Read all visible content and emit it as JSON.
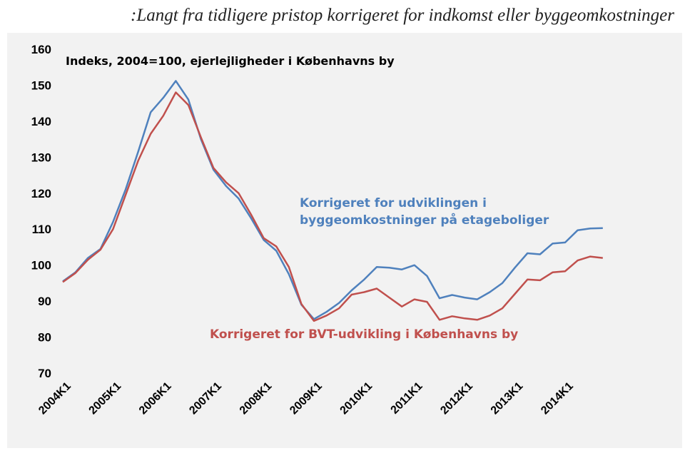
{
  "title": ":Langt fra tidligere pristop korrigeret for indkomst eller byggeomkostninger",
  "chart_data": {
    "type": "line",
    "subtitle": "Indeks, 2004=100, ejerlejligheder i Københavns by",
    "ylim": [
      70,
      160
    ],
    "yticks": [
      70,
      80,
      90,
      100,
      110,
      120,
      130,
      140,
      150,
      160
    ],
    "grid": false,
    "x_tick_labels": [
      "2004K1",
      "2005K1",
      "2006K1",
      "2007K1",
      "2008K1",
      "2009K1",
      "2010K1",
      "2011K1",
      "2012K1",
      "2013K1",
      "2014K1"
    ],
    "series": [
      {
        "name": "Korrigeret for udviklingen i byggeomkostninger på etageboliger",
        "label_lines": [
          "Korrigeret for udviklingen i",
          "byggeomkostninger på etageboliger"
        ],
        "color": "#4f81bd",
        "values": [
          95.5,
          98,
          102,
          104.5,
          112,
          121,
          131.5,
          142.5,
          146.5,
          151.2,
          146,
          135,
          126.5,
          122,
          118.5,
          113,
          107,
          104,
          97.5,
          89,
          85,
          87,
          89.5,
          93,
          96,
          99.5,
          99.3,
          98.8,
          100,
          97,
          90.8,
          91.7,
          91,
          90.5,
          92.5,
          95,
          99.3,
          103.3,
          103,
          106,
          106.3,
          109.7,
          110.2,
          110.3
        ]
      },
      {
        "name": "Korrigeret for BVT-udvikling i Københavns by",
        "label_lines": [
          "Korrigeret for BVT-udvikling i Københavns by"
        ],
        "color": "#c0504d",
        "values": [
          95.3,
          97.8,
          101.5,
          104.3,
          110,
          119.5,
          129,
          136.5,
          141.5,
          148,
          144.5,
          135.5,
          127,
          123,
          120,
          114,
          107.5,
          105.2,
          99.5,
          89.2,
          84.5,
          86,
          88,
          91.8,
          92.5,
          93.5,
          91,
          88.5,
          90.5,
          89.8,
          84.8,
          85.8,
          85.2,
          84.8,
          86,
          88,
          92,
          96,
          95.8,
          98,
          98.3,
          101.3,
          102.4,
          102
        ]
      }
    ]
  }
}
